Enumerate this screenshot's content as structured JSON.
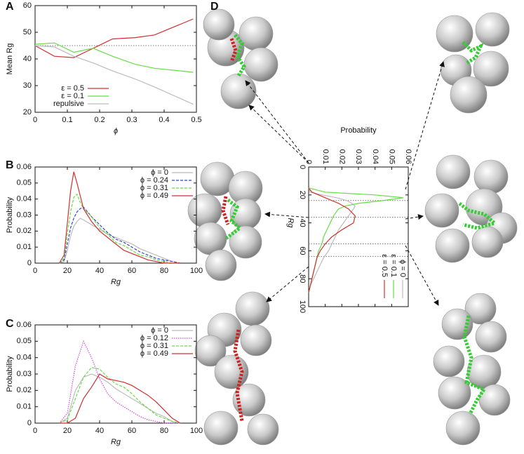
{
  "chart_data": [
    {
      "type": "line",
      "panel": "A",
      "xlabel": "ϕ",
      "ylabel": "Mean Rg",
      "x": [
        0,
        0.06,
        0.12,
        0.18,
        0.24,
        0.31,
        0.37,
        0.49
      ],
      "series": [
        {
          "name": "ε = 0.5",
          "color": "#d03030",
          "dash": "solid",
          "values": [
            45,
            41,
            40.5,
            44,
            47.5,
            48,
            49,
            55
          ]
        },
        {
          "name": "ε = 0.1",
          "color": "#66dd44",
          "dash": "solid",
          "values": [
            45.5,
            46,
            42.5,
            44,
            41,
            38,
            36.5,
            35
          ]
        },
        {
          "name": "repulsive",
          "color": "#bbbbbb",
          "dash": "solid",
          "values": [
            45,
            44.5,
            41,
            38.5,
            35.5,
            32.5,
            29.5,
            23
          ]
        }
      ],
      "reference_lines": [
        45
      ],
      "xlim": [
        0,
        0.5
      ],
      "xticks": [
        0,
        0.1,
        0.2,
        0.3,
        0.4,
        0.5
      ],
      "ylim": [
        20,
        60
      ],
      "yticks": [
        20,
        30,
        40,
        50,
        60
      ],
      "legend": "lower left"
    },
    {
      "type": "line",
      "panel": "B",
      "xlabel": "Rg",
      "ylabel": "Probability",
      "x": [
        15,
        18,
        20,
        22,
        24,
        26,
        28,
        30,
        35,
        40,
        45,
        50,
        55,
        60,
        65,
        70,
        75,
        80,
        85,
        90
      ],
      "series": [
        {
          "name": "ϕ = 0",
          "color": "#bbbbbb",
          "dash": "solid",
          "values": [
            0,
            0.001,
            0.008,
            0.017,
            0.023,
            0.026,
            0.028,
            0.027,
            0.024,
            0.021,
            0.018,
            0.016,
            0.014,
            0.012,
            0.009,
            0.007,
            0.005,
            0.003,
            0.001,
            0
          ]
        },
        {
          "name": "ϕ = 0.24",
          "color": "#3344cc",
          "dash": "dashed",
          "values": [
            0,
            0.002,
            0.012,
            0.022,
            0.028,
            0.032,
            0.034,
            0.035,
            0.029,
            0.024,
            0.019,
            0.015,
            0.013,
            0.01,
            0.007,
            0.005,
            0.003,
            0.002,
            0.001,
            0
          ]
        },
        {
          "name": "ϕ = 0.31",
          "color": "#66dd44",
          "dash": "dashed",
          "values": [
            0,
            0.003,
            0.018,
            0.032,
            0.041,
            0.043,
            0.038,
            0.034,
            0.029,
            0.022,
            0.018,
            0.013,
            0.011,
            0.008,
            0.005,
            0.004,
            0.002,
            0.001,
            0,
            0
          ]
        },
        {
          "name": "ϕ = 0.49",
          "color": "#d03030",
          "dash": "solid",
          "values": [
            0,
            0.005,
            0.025,
            0.045,
            0.057,
            0.05,
            0.042,
            0.034,
            0.026,
            0.02,
            0.016,
            0.012,
            0.008,
            0.006,
            0.004,
            0.002,
            0.001,
            0,
            0,
            0
          ]
        }
      ],
      "xlim": [
        0,
        100
      ],
      "xticks": [
        0,
        20,
        40,
        60,
        80,
        100
      ],
      "ylim": [
        0,
        0.06
      ],
      "yticks": [
        0,
        0.01,
        0.02,
        0.03,
        0.04,
        0.05,
        0.06
      ],
      "legend": "upper right"
    },
    {
      "type": "line",
      "panel": "C",
      "xlabel": "Rg",
      "ylabel": "Probability",
      "x": [
        15,
        20,
        25,
        30,
        35,
        40,
        45,
        50,
        55,
        60,
        65,
        70,
        75,
        80,
        85,
        90
      ],
      "series": [
        {
          "name": "ϕ = 0",
          "color": "#bbbbbb",
          "dash": "solid",
          "values": [
            0,
            0.003,
            0.02,
            0.028,
            0.03,
            0.028,
            0.025,
            0.021,
            0.018,
            0.015,
            0.012,
            0.009,
            0.006,
            0.004,
            0.001,
            0
          ]
        },
        {
          "name": "ϕ = 0.12",
          "color": "#dd44dd",
          "dash": "dotted",
          "values": [
            0,
            0.006,
            0.035,
            0.05,
            0.04,
            0.027,
            0.018,
            0.013,
            0.01,
            0.007,
            0.004,
            0.002,
            0.001,
            0,
            0,
            0
          ]
        },
        {
          "name": "ϕ = 0.31",
          "color": "#66dd44",
          "dash": "dashed",
          "values": [
            0,
            0.002,
            0.015,
            0.028,
            0.034,
            0.033,
            0.028,
            0.024,
            0.022,
            0.018,
            0.013,
            0.009,
            0.005,
            0.003,
            0.001,
            0
          ]
        },
        {
          "name": "ϕ = 0.49",
          "color": "#d03030",
          "dash": "solid",
          "values": [
            0,
            0,
            0.003,
            0.015,
            0.022,
            0.03,
            0.027,
            0.026,
            0.025,
            0.023,
            0.02,
            0.017,
            0.013,
            0.008,
            0.003,
            0
          ]
        }
      ],
      "xlim": [
        0,
        100
      ],
      "xticks": [
        0,
        20,
        40,
        60,
        80,
        100
      ],
      "ylim": [
        0,
        0.06
      ],
      "yticks": [
        0,
        0.01,
        0.02,
        0.03,
        0.04,
        0.05,
        0.06
      ],
      "legend": "upper right"
    },
    {
      "type": "line",
      "panel": "D",
      "xlabel": "Rg",
      "ylabel": "Probability",
      "swap_axes": true,
      "x": [
        15,
        18,
        20,
        22,
        24,
        26,
        28,
        30,
        35,
        40,
        45,
        50,
        55,
        60,
        65,
        70,
        75,
        80,
        85,
        90
      ],
      "series": [
        {
          "name": "ϕ = 0",
          "color": "#bbbbbb",
          "dash": "solid",
          "values": [
            0,
            0.001,
            0.008,
            0.017,
            0.023,
            0.026,
            0.028,
            0.027,
            0.024,
            0.021,
            0.018,
            0.016,
            0.014,
            0.012,
            0.009,
            0.007,
            0.005,
            0.003,
            0.001,
            0
          ]
        },
        {
          "name": "ε = 0.1",
          "color": "#66dd44",
          "dash": "solid",
          "values": [
            0,
            0.01,
            0.04,
            0.057,
            0.045,
            0.03,
            0.022,
            0.018,
            0.015,
            0.013,
            0.011,
            0.009,
            0.008,
            0.006,
            0.005,
            0.004,
            0.003,
            0.002,
            0.001,
            0
          ]
        },
        {
          "name": "ε = 0.5",
          "color": "#d03030",
          "dash": "solid",
          "values": [
            0,
            0.002,
            0.006,
            0.01,
            0.014,
            0.018,
            0.021,
            0.024,
            0.028,
            0.027,
            0.02,
            0.014,
            0.01,
            0.007,
            0.005,
            0.004,
            0.003,
            0.002,
            0.001,
            0
          ]
        }
      ],
      "reference_lines": [
        24,
        36,
        55,
        64
      ],
      "xlim": [
        0,
        100
      ],
      "xticks": [
        0,
        20,
        40,
        60,
        80,
        100
      ],
      "ylim": [
        0,
        0.06
      ],
      "yticks": [
        0,
        0.01,
        0.02,
        0.03,
        0.04,
        0.05,
        0.06
      ],
      "legend": "lower right"
    }
  ]
}
